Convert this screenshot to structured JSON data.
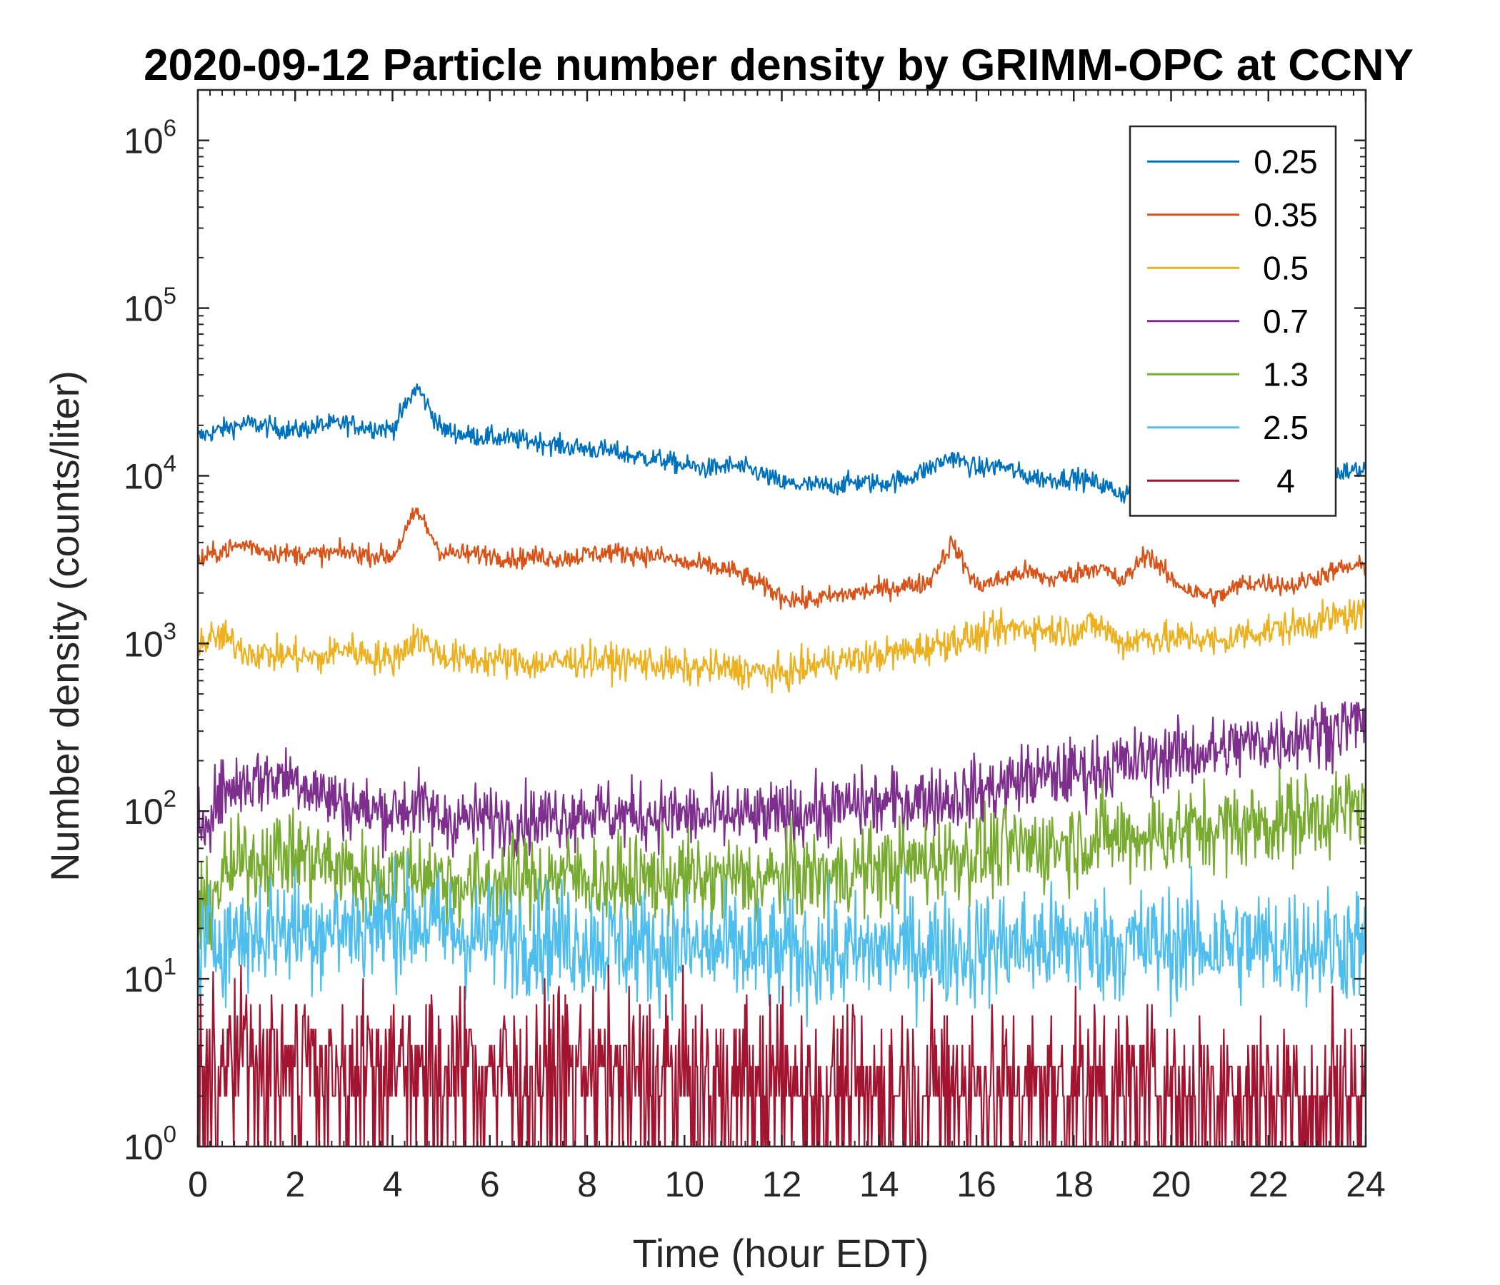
{
  "chart_data": {
    "type": "line",
    "title": "2020-09-12 Particle number density by GRIMM-OPC at CCNY",
    "xlabel": "Time (hour EDT)",
    "ylabel": "Number density (counts/liter)",
    "xlim": [
      0,
      24
    ],
    "ylim": [
      1,
      2000000
    ],
    "y_scale": "log",
    "grid": false,
    "legend_position": "top-right",
    "x_ticks": [
      "0",
      "2",
      "4",
      "6",
      "8",
      "10",
      "12",
      "14",
      "16",
      "18",
      "20",
      "22",
      "24"
    ],
    "y_ticks": [
      {
        "base": "10",
        "exp": "0",
        "value": 1
      },
      {
        "base": "10",
        "exp": "1",
        "value": 10
      },
      {
        "base": "10",
        "exp": "2",
        "value": 100
      },
      {
        "base": "10",
        "exp": "3",
        "value": 1000
      },
      {
        "base": "10",
        "exp": "4",
        "value": 10000
      },
      {
        "base": "10",
        "exp": "5",
        "value": 100000
      },
      {
        "base": "10",
        "exp": "6",
        "value": 1000000
      }
    ],
    "x": [
      0,
      0.5,
      1,
      1.5,
      2,
      2.5,
      3,
      3.5,
      4,
      4.5,
      5,
      5.5,
      6,
      6.5,
      7,
      7.5,
      8,
      8.5,
      9,
      9.5,
      10,
      10.5,
      11,
      11.5,
      12,
      12.5,
      13,
      13.5,
      14,
      14.5,
      15,
      15.5,
      16,
      16.5,
      17,
      17.5,
      18,
      18.5,
      19,
      19.5,
      20,
      20.5,
      21,
      21.5,
      22,
      22.5,
      23,
      23.5,
      24
    ],
    "series": [
      {
        "name": "0.25",
        "color": "#0072BD",
        "values": [
          17000,
          19000,
          20500,
          19500,
          18500,
          20000,
          20500,
          19500,
          19000,
          34000,
          19000,
          17500,
          17000,
          16500,
          16000,
          15000,
          14500,
          14000,
          13000,
          12500,
          11500,
          11000,
          11500,
          10500,
          9000,
          8800,
          8700,
          9200,
          9000,
          9500,
          11000,
          13000,
          11000,
          11500,
          10000,
          9500,
          9800,
          9000,
          7800,
          8500,
          8000,
          7500,
          7200,
          8500,
          9000,
          9500,
          10000,
          10500,
          11000
        ]
      },
      {
        "name": "0.35",
        "color": "#D95319",
        "values": [
          3100,
          3600,
          3900,
          3500,
          3400,
          3400,
          3500,
          3400,
          3300,
          6200,
          3500,
          3400,
          3400,
          3200,
          3300,
          3200,
          3400,
          3500,
          3400,
          3300,
          3000,
          2900,
          2700,
          2300,
          1900,
          1800,
          1900,
          2000,
          2100,
          2200,
          2300,
          4000,
          2200,
          2400,
          2700,
          2400,
          2600,
          2900,
          2300,
          3500,
          2400,
          2000,
          1900,
          2300,
          2300,
          2200,
          2500,
          2800,
          2900
        ]
      },
      {
        "name": "0.5",
        "color": "#EDB120",
        "values": [
          1000,
          1100,
          900,
          850,
          850,
          800,
          950,
          850,
          800,
          1100,
          850,
          800,
          800,
          780,
          750,
          780,
          800,
          780,
          780,
          750,
          700,
          720,
          700,
          680,
          650,
          720,
          780,
          800,
          850,
          900,
          950,
          1050,
          1100,
          1200,
          1250,
          1200,
          1200,
          1300,
          1000,
          1100,
          1050,
          1100,
          1000,
          1150,
          1200,
          1250,
          1350,
          1450,
          1500
        ]
      },
      {
        "name": "0.7",
        "color": "#7E2F8E",
        "values": [
          80,
          130,
          150,
          160,
          160,
          130,
          110,
          100,
          100,
          110,
          90,
          90,
          90,
          90,
          90,
          95,
          100,
          95,
          95,
          95,
          95,
          90,
          95,
          90,
          95,
          100,
          100,
          110,
          110,
          115,
          120,
          120,
          130,
          140,
          160,
          160,
          170,
          180,
          190,
          200,
          220,
          220,
          230,
          250,
          260,
          280,
          300,
          320,
          350
        ]
      },
      {
        "name": "1.3",
        "color": "#77AC30",
        "values": [
          20,
          40,
          50,
          55,
          55,
          50,
          45,
          40,
          40,
          45,
          40,
          35,
          38,
          38,
          40,
          42,
          40,
          38,
          38,
          40,
          40,
          38,
          40,
          38,
          40,
          42,
          40,
          45,
          45,
          48,
          50,
          55,
          55,
          58,
          60,
          62,
          65,
          70,
          70,
          72,
          75,
          78,
          80,
          82,
          85,
          90,
          95,
          100,
          110
        ]
      },
      {
        "name": "2.5",
        "color": "#4DBEEE",
        "values": [
          15,
          18,
          18,
          20,
          20,
          20,
          20,
          20,
          22,
          22,
          20,
          18,
          18,
          18,
          18,
          17,
          17,
          16,
          16,
          15,
          15,
          15,
          15,
          14,
          14,
          14,
          14,
          14,
          15,
          15,
          15,
          15,
          15,
          16,
          16,
          16,
          16,
          16,
          16,
          16,
          16,
          16,
          16,
          16,
          16,
          16,
          16,
          16,
          16
        ]
      },
      {
        "name": "4",
        "color": "#A2142F",
        "values": [
          3,
          3.5,
          4,
          3.5,
          3.5,
          3.5,
          3.5,
          3.5,
          3.5,
          3.5,
          3.2,
          3.2,
          3,
          3,
          3,
          3,
          3,
          3,
          2.8,
          2.8,
          2.8,
          2.6,
          2.6,
          2.6,
          2.6,
          2.6,
          2.5,
          2.5,
          2.5,
          2.5,
          2.5,
          2.5,
          2.5,
          2.5,
          2.5,
          2.5,
          2.5,
          2.5,
          2.5,
          2.5,
          2.5,
          2.5,
          2.5,
          2.4,
          2.4,
          2.4,
          2.4,
          2.4,
          2.4
        ]
      }
    ]
  }
}
